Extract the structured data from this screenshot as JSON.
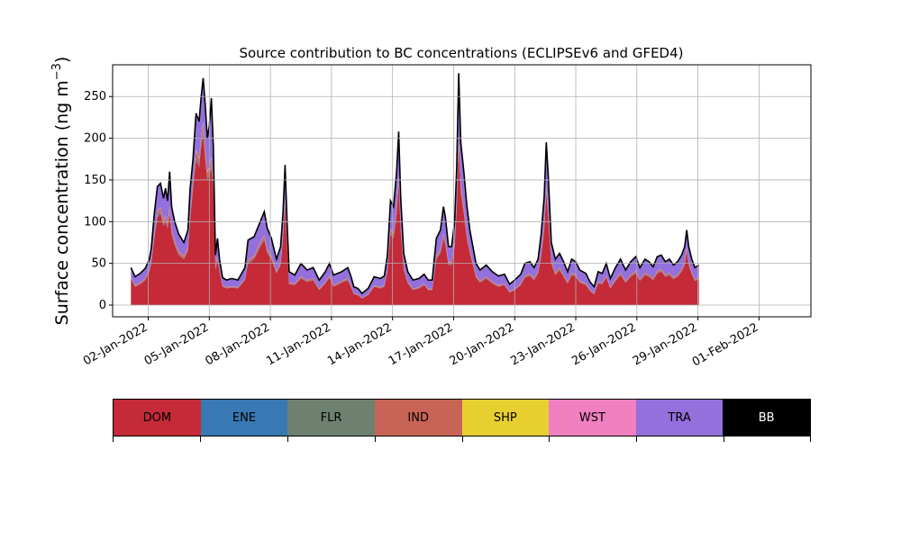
{
  "chart_data": {
    "type": "area",
    "title": "Source contribution to BC concentrations (ECLIPSEv6 and GFED4)",
    "ylabel": "Surface concentration (ng m",
    "ylabel_sup": "−3",
    "ylabel_close": ")",
    "xlabel": "",
    "ylim": [
      -14,
      288
    ],
    "xlim": [
      0.25,
      34.55
    ],
    "yticks": [
      0,
      50,
      100,
      150,
      200,
      250
    ],
    "xticks": [
      {
        "x": 2,
        "label": "02-Jan-2022"
      },
      {
        "x": 5,
        "label": "05-Jan-2022"
      },
      {
        "x": 8,
        "label": "08-Jan-2022"
      },
      {
        "x": 11,
        "label": "11-Jan-2022"
      },
      {
        "x": 14,
        "label": "14-Jan-2022"
      },
      {
        "x": 17,
        "label": "17-Jan-2022"
      },
      {
        "x": 20,
        "label": "20-Jan-2022"
      },
      {
        "x": 23,
        "label": "23-Jan-2022"
      },
      {
        "x": 26,
        "label": "26-Jan-2022"
      },
      {
        "x": 29,
        "label": "29-Jan-2022"
      },
      {
        "x": 32,
        "label": "01-Feb-2022"
      }
    ],
    "grid": true,
    "legend_position": "bottom",
    "x_units": "day of January 2022",
    "total": [
      [
        1.15,
        45
      ],
      [
        1.35,
        34
      ],
      [
        1.6,
        38
      ],
      [
        1.85,
        44
      ],
      [
        2.05,
        55
      ],
      [
        2.15,
        68
      ],
      [
        2.3,
        110
      ],
      [
        2.45,
        142
      ],
      [
        2.6,
        146
      ],
      [
        2.75,
        128
      ],
      [
        2.85,
        140
      ],
      [
        2.95,
        125
      ],
      [
        3.05,
        160
      ],
      [
        3.15,
        118
      ],
      [
        3.3,
        100
      ],
      [
        3.5,
        85
      ],
      [
        3.75,
        75
      ],
      [
        3.95,
        90
      ],
      [
        4.05,
        138
      ],
      [
        4.2,
        175
      ],
      [
        4.35,
        230
      ],
      [
        4.5,
        220
      ],
      [
        4.6,
        250
      ],
      [
        4.7,
        272
      ],
      [
        4.8,
        240
      ],
      [
        4.9,
        200
      ],
      [
        5.0,
        215
      ],
      [
        5.1,
        248
      ],
      [
        5.2,
        190
      ],
      [
        5.3,
        60
      ],
      [
        5.4,
        80
      ],
      [
        5.5,
        55
      ],
      [
        5.65,
        33
      ],
      [
        5.85,
        30
      ],
      [
        6.1,
        32
      ],
      [
        6.4,
        30
      ],
      [
        6.75,
        45
      ],
      [
        6.9,
        78
      ],
      [
        7.2,
        82
      ],
      [
        7.5,
        100
      ],
      [
        7.7,
        112
      ],
      [
        7.85,
        92
      ],
      [
        8.05,
        80
      ],
      [
        8.3,
        55
      ],
      [
        8.5,
        70
      ],
      [
        8.62,
        110
      ],
      [
        8.72,
        168
      ],
      [
        8.82,
        100
      ],
      [
        8.92,
        40
      ],
      [
        9.2,
        36
      ],
      [
        9.5,
        50
      ],
      [
        9.8,
        42
      ],
      [
        10.1,
        45
      ],
      [
        10.4,
        30
      ],
      [
        10.7,
        40
      ],
      [
        10.9,
        50
      ],
      [
        11.1,
        36
      ],
      [
        11.5,
        40
      ],
      [
        11.8,
        45
      ],
      [
        11.95,
        35
      ],
      [
        12.1,
        22
      ],
      [
        12.3,
        20
      ],
      [
        12.5,
        14
      ],
      [
        12.8,
        20
      ],
      [
        13.1,
        34
      ],
      [
        13.4,
        32
      ],
      [
        13.6,
        35
      ],
      [
        13.75,
        60
      ],
      [
        13.9,
        125
      ],
      [
        14.05,
        118
      ],
      [
        14.2,
        160
      ],
      [
        14.3,
        208
      ],
      [
        14.4,
        130
      ],
      [
        14.55,
        62
      ],
      [
        14.75,
        40
      ],
      [
        15.0,
        30
      ],
      [
        15.3,
        32
      ],
      [
        15.55,
        37
      ],
      [
        15.75,
        30
      ],
      [
        15.95,
        30
      ],
      [
        16.15,
        80
      ],
      [
        16.35,
        90
      ],
      [
        16.5,
        118
      ],
      [
        16.6,
        105
      ],
      [
        16.75,
        70
      ],
      [
        16.9,
        70
      ],
      [
        17.05,
        100
      ],
      [
        17.15,
        165
      ],
      [
        17.25,
        278
      ],
      [
        17.35,
        195
      ],
      [
        17.5,
        160
      ],
      [
        17.65,
        120
      ],
      [
        17.8,
        90
      ],
      [
        17.95,
        70
      ],
      [
        18.1,
        50
      ],
      [
        18.3,
        42
      ],
      [
        18.6,
        48
      ],
      [
        18.9,
        40
      ],
      [
        19.2,
        35
      ],
      [
        19.5,
        37
      ],
      [
        19.75,
        25
      ],
      [
        20.0,
        30
      ],
      [
        20.3,
        37
      ],
      [
        20.5,
        50
      ],
      [
        20.75,
        52
      ],
      [
        20.95,
        45
      ],
      [
        21.15,
        55
      ],
      [
        21.3,
        85
      ],
      [
        21.45,
        130
      ],
      [
        21.55,
        195
      ],
      [
        21.65,
        155
      ],
      [
        21.8,
        75
      ],
      [
        22.0,
        55
      ],
      [
        22.2,
        62
      ],
      [
        22.4,
        52
      ],
      [
        22.6,
        40
      ],
      [
        22.8,
        55
      ],
      [
        23.0,
        52
      ],
      [
        23.2,
        42
      ],
      [
        23.5,
        38
      ],
      [
        23.7,
        28
      ],
      [
        23.9,
        22
      ],
      [
        24.1,
        40
      ],
      [
        24.3,
        38
      ],
      [
        24.5,
        50
      ],
      [
        24.7,
        32
      ],
      [
        24.95,
        45
      ],
      [
        25.2,
        55
      ],
      [
        25.45,
        42
      ],
      [
        25.7,
        52
      ],
      [
        25.95,
        58
      ],
      [
        26.15,
        45
      ],
      [
        26.4,
        55
      ],
      [
        26.6,
        52
      ],
      [
        26.8,
        46
      ],
      [
        27.0,
        58
      ],
      [
        27.2,
        60
      ],
      [
        27.4,
        52
      ],
      [
        27.6,
        55
      ],
      [
        27.8,
        48
      ],
      [
        28.0,
        52
      ],
      [
        28.2,
        60
      ],
      [
        28.35,
        70
      ],
      [
        28.45,
        90
      ],
      [
        28.55,
        70
      ],
      [
        28.7,
        55
      ],
      [
        28.85,
        45
      ],
      [
        29.05,
        48
      ]
    ],
    "series": [
      {
        "name": "DOM",
        "color": "#c42a38",
        "values": [
          [
            1.15,
            32
          ],
          [
            1.35,
            22
          ],
          [
            1.6,
            25
          ],
          [
            1.85,
            30
          ],
          [
            2.05,
            40
          ],
          [
            2.15,
            50
          ],
          [
            2.3,
            80
          ],
          [
            2.45,
            105
          ],
          [
            2.6,
            110
          ],
          [
            2.75,
            95
          ],
          [
            2.85,
            100
          ],
          [
            2.95,
            92
          ],
          [
            3.05,
            110
          ],
          [
            3.15,
            85
          ],
          [
            3.3,
            72
          ],
          [
            3.5,
            60
          ],
          [
            3.75,
            55
          ],
          [
            3.95,
            65
          ],
          [
            4.05,
            100
          ],
          [
            4.2,
            140
          ],
          [
            4.35,
            175
          ],
          [
            4.5,
            165
          ],
          [
            4.6,
            190
          ],
          [
            4.7,
            205
          ],
          [
            4.8,
            175
          ],
          [
            4.9,
            150
          ],
          [
            5.0,
            155
          ],
          [
            5.1,
            165
          ],
          [
            5.2,
            140
          ],
          [
            5.3,
            42
          ],
          [
            5.4,
            55
          ],
          [
            5.5,
            40
          ],
          [
            5.65,
            22
          ],
          [
            5.85,
            20
          ],
          [
            6.1,
            21
          ],
          [
            6.4,
            20
          ],
          [
            6.75,
            30
          ],
          [
            6.9,
            50
          ],
          [
            7.2,
            55
          ],
          [
            7.5,
            70
          ],
          [
            7.7,
            78
          ],
          [
            7.85,
            62
          ],
          [
            8.05,
            55
          ],
          [
            8.3,
            38
          ],
          [
            8.5,
            48
          ],
          [
            8.62,
            78
          ],
          [
            8.72,
            120
          ],
          [
            8.82,
            70
          ],
          [
            8.92,
            25
          ],
          [
            9.2,
            24
          ],
          [
            9.5,
            32
          ],
          [
            9.8,
            28
          ],
          [
            10.1,
            30
          ],
          [
            10.4,
            18
          ],
          [
            10.7,
            26
          ],
          [
            10.9,
            33
          ],
          [
            11.1,
            22
          ],
          [
            11.5,
            27
          ],
          [
            11.8,
            30
          ],
          [
            11.95,
            22
          ],
          [
            12.1,
            13
          ],
          [
            12.3,
            12
          ],
          [
            12.5,
            8
          ],
          [
            12.8,
            12
          ],
          [
            13.1,
            22
          ],
          [
            13.4,
            20
          ],
          [
            13.6,
            22
          ],
          [
            13.75,
            40
          ],
          [
            13.9,
            85
          ],
          [
            14.05,
            80
          ],
          [
            14.2,
            110
          ],
          [
            14.3,
            145
          ],
          [
            14.4,
            90
          ],
          [
            14.55,
            42
          ],
          [
            14.75,
            26
          ],
          [
            15.0,
            18
          ],
          [
            15.3,
            20
          ],
          [
            15.55,
            24
          ],
          [
            15.75,
            18
          ],
          [
            15.95,
            18
          ],
          [
            16.15,
            55
          ],
          [
            16.35,
            62
          ],
          [
            16.5,
            80
          ],
          [
            16.6,
            72
          ],
          [
            16.75,
            48
          ],
          [
            16.9,
            48
          ],
          [
            17.05,
            70
          ],
          [
            17.15,
            115
          ],
          [
            17.25,
            190
          ],
          [
            17.35,
            135
          ],
          [
            17.5,
            110
          ],
          [
            17.65,
            80
          ],
          [
            17.8,
            62
          ],
          [
            17.95,
            48
          ],
          [
            18.1,
            33
          ],
          [
            18.3,
            27
          ],
          [
            18.6,
            32
          ],
          [
            18.9,
            26
          ],
          [
            19.2,
            22
          ],
          [
            19.5,
            24
          ],
          [
            19.75,
            15
          ],
          [
            20.0,
            18
          ],
          [
            20.3,
            24
          ],
          [
            20.5,
            33
          ],
          [
            20.75,
            35
          ],
          [
            20.95,
            30
          ],
          [
            21.15,
            38
          ],
          [
            21.3,
            58
          ],
          [
            21.45,
            90
          ],
          [
            21.55,
            135
          ],
          [
            21.65,
            105
          ],
          [
            21.8,
            50
          ],
          [
            22.0,
            36
          ],
          [
            22.2,
            42
          ],
          [
            22.4,
            34
          ],
          [
            22.6,
            26
          ],
          [
            22.8,
            36
          ],
          [
            23.0,
            34
          ],
          [
            23.2,
            27
          ],
          [
            23.5,
            24
          ],
          [
            23.7,
            17
          ],
          [
            23.9,
            13
          ],
          [
            24.1,
            26
          ],
          [
            24.3,
            25
          ],
          [
            24.5,
            33
          ],
          [
            24.7,
            20
          ],
          [
            24.95,
            29
          ],
          [
            25.2,
            36
          ],
          [
            25.45,
            27
          ],
          [
            25.7,
            34
          ],
          [
            25.95,
            38
          ],
          [
            26.15,
            29
          ],
          [
            26.4,
            36
          ],
          [
            26.6,
            34
          ],
          [
            26.8,
            30
          ],
          [
            27.0,
            38
          ],
          [
            27.2,
            40
          ],
          [
            27.4,
            34
          ],
          [
            27.6,
            36
          ],
          [
            27.8,
            31
          ],
          [
            28.0,
            34
          ],
          [
            28.2,
            40
          ],
          [
            28.35,
            48
          ],
          [
            28.45,
            65
          ],
          [
            28.55,
            48
          ],
          [
            28.7,
            37
          ],
          [
            28.85,
            29
          ],
          [
            29.05,
            31
          ]
        ]
      },
      {
        "name": "ENE",
        "color": "#3878b4",
        "fraction": 0.005
      },
      {
        "name": "FLR",
        "color": "#6e8070",
        "fraction": 0.01
      },
      {
        "name": "IND",
        "color": "#c86456",
        "fraction": 0.03
      },
      {
        "name": "SHP",
        "color": "#e8cf30",
        "fraction": 0.002
      },
      {
        "name": "WST",
        "color": "#f080c0",
        "fraction": 0.005
      },
      {
        "name": "TRA",
        "color": "#9370db",
        "fraction": "remainder"
      },
      {
        "name": "BB",
        "color": "#000000",
        "fraction": 0
      }
    ],
    "legend": [
      {
        "label": "DOM",
        "color": "#c42a38",
        "text_color": "#000000"
      },
      {
        "label": "ENE",
        "color": "#3878b4",
        "text_color": "#000000"
      },
      {
        "label": "FLR",
        "color": "#6e8070",
        "text_color": "#000000"
      },
      {
        "label": "IND",
        "color": "#c86456",
        "text_color": "#000000"
      },
      {
        "label": "SHP",
        "color": "#e8cf30",
        "text_color": "#000000"
      },
      {
        "label": "WST",
        "color": "#f080c0",
        "text_color": "#000000"
      },
      {
        "label": "TRA",
        "color": "#9370db",
        "text_color": "#000000"
      },
      {
        "label": "BB",
        "color": "#000000",
        "text_color": "#ffffff"
      }
    ]
  }
}
